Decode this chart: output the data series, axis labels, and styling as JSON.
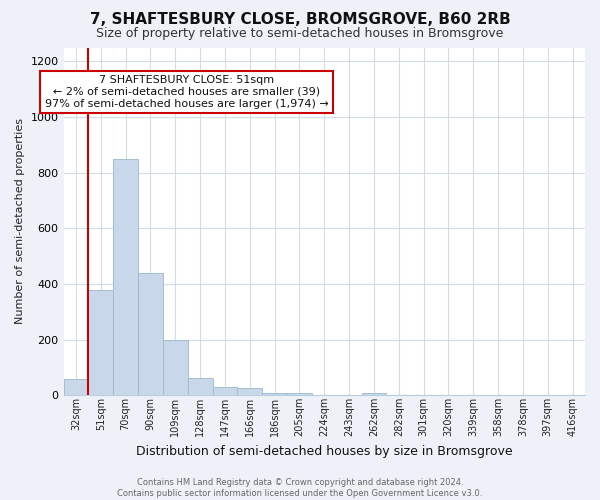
{
  "title": "7, SHAFTESBURY CLOSE, BROMSGROVE, B60 2RB",
  "subtitle": "Size of property relative to semi-detached houses in Bromsgrove",
  "xlabel": "Distribution of semi-detached houses by size in Bromsgrove",
  "ylabel": "Number of semi-detached properties",
  "footer_line1": "Contains HM Land Registry data © Crown copyright and database right 2024.",
  "footer_line2": "Contains public sector information licensed under the Open Government Licence v3.0.",
  "annotation_title": "7 SHAFTESBURY CLOSE: 51sqm",
  "annotation_line1": "← 2% of semi-detached houses are smaller (39)",
  "annotation_line2": "97% of semi-detached houses are larger (1,974) →",
  "property_bin_index": 1,
  "bar_color": "#c8d8ea",
  "bar_edgecolor": "#9ab8cc",
  "redline_color": "#cc0000",
  "annotation_box_edgecolor": "#cc0000",
  "annotation_box_facecolor": "#ffffff",
  "categories": [
    "32sqm",
    "51sqm",
    "70sqm",
    "90sqm",
    "109sqm",
    "128sqm",
    "147sqm",
    "166sqm",
    "186sqm",
    "205sqm",
    "224sqm",
    "243sqm",
    "262sqm",
    "282sqm",
    "301sqm",
    "320sqm",
    "339sqm",
    "358sqm",
    "378sqm",
    "397sqm",
    "416sqm"
  ],
  "values": [
    60,
    380,
    850,
    440,
    200,
    62,
    30,
    25,
    10,
    8,
    3,
    3,
    8,
    0,
    0,
    0,
    0,
    0,
    0,
    0,
    0
  ],
  "ylim": [
    0,
    1250
  ],
  "yticks": [
    0,
    200,
    400,
    600,
    800,
    1000,
    1200
  ],
  "grid_color": "#d0dce8",
  "bg_color": "#eef2f8",
  "plot_bg": "#ffffff",
  "title_fontsize": 11,
  "subtitle_fontsize": 9
}
